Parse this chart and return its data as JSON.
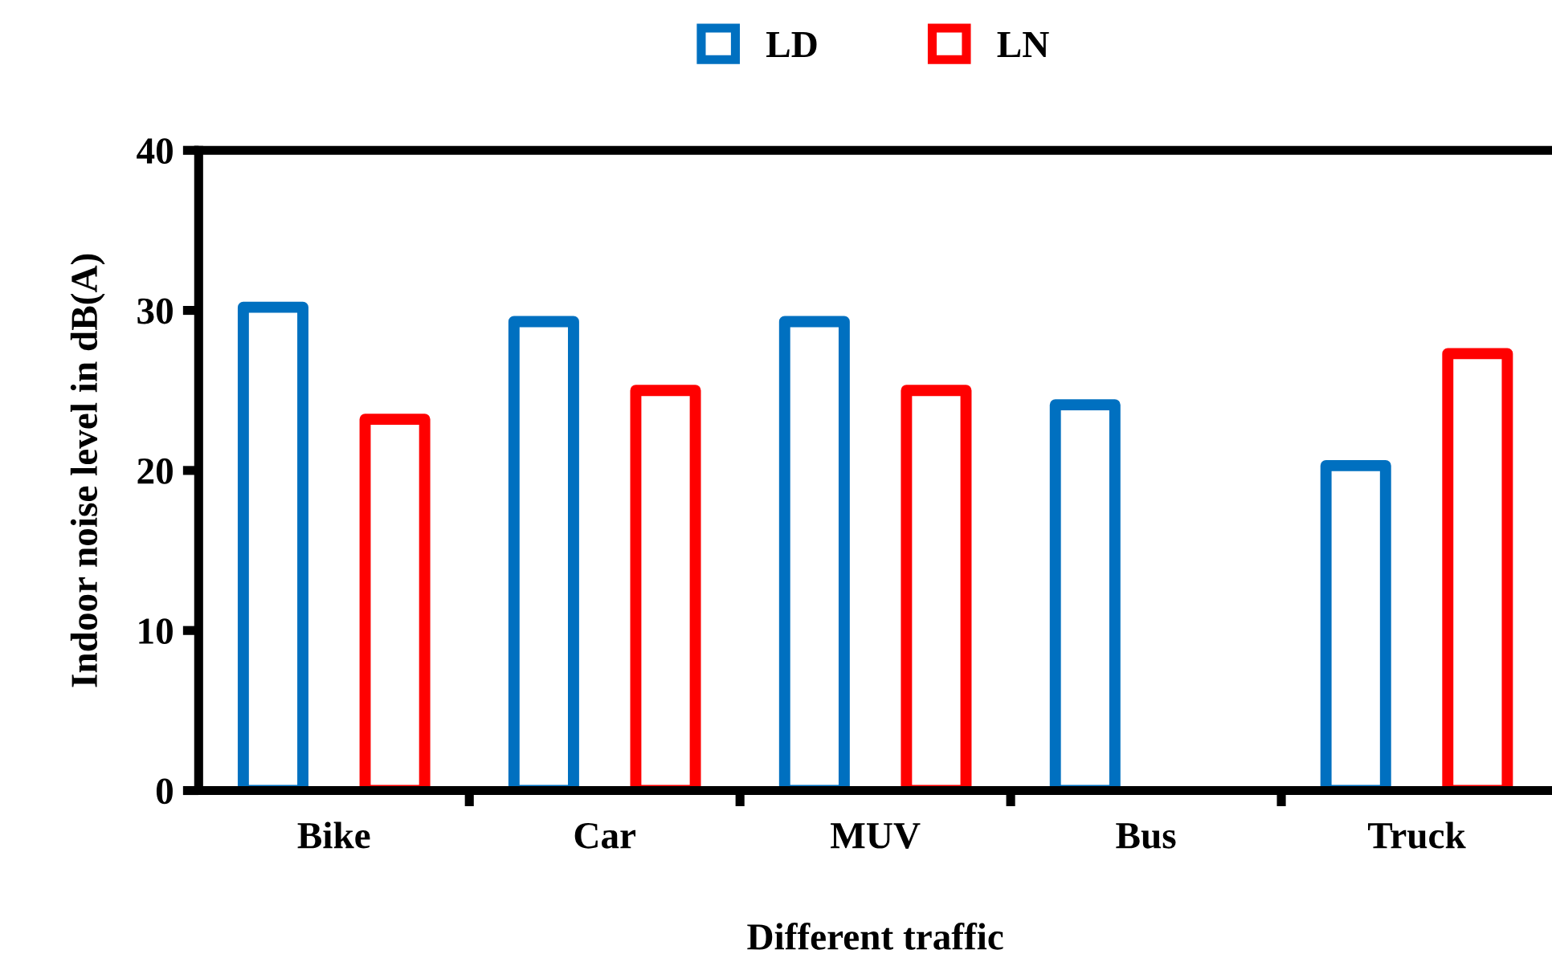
{
  "chart_data": {
    "type": "bar",
    "xlabel": "Different traffic",
    "ylabel": "Indoor noise level in dB(A)",
    "categories": [
      "Bike",
      "Car",
      "MUV",
      "Bus",
      "Truck"
    ],
    "series": [
      {
        "name": "LD",
        "color": "#0070c0",
        "values": [
          30.2,
          29.3,
          29.3,
          24.1,
          20.3
        ]
      },
      {
        "name": "LN",
        "color": "#ff0000",
        "values": [
          23.2,
          25.0,
          25.0,
          null,
          27.3
        ]
      }
    ],
    "ylim": [
      0,
      40
    ],
    "yticks": [
      0,
      10,
      20,
      30,
      40
    ],
    "grid": false,
    "legend": "top"
  }
}
